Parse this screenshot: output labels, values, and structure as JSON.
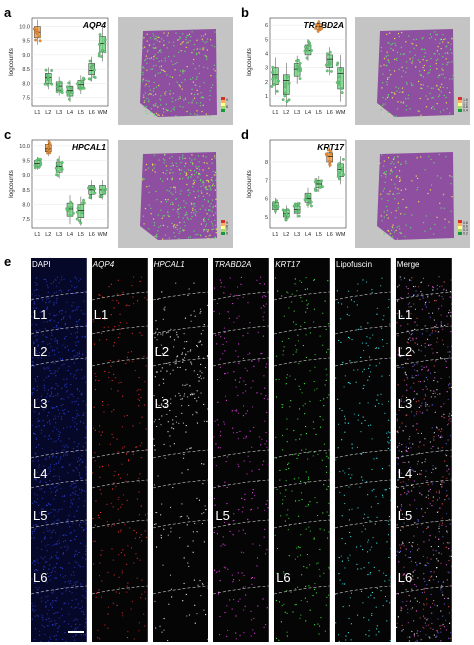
{
  "panels": {
    "a": {
      "letter": "a",
      "gene": "AQP4",
      "ylabel": "logcounts",
      "yticks": [
        "7.5",
        "8.0",
        "8.5",
        "9.0",
        "9.5",
        "10.0"
      ],
      "ymin": 7.2,
      "ymax": 10.3,
      "categories": [
        "L1",
        "L2",
        "L3",
        "L4",
        "L5",
        "L6",
        "WM"
      ],
      "medians": [
        9.8,
        8.2,
        7.9,
        7.75,
        7.95,
        8.45,
        9.4
      ],
      "box_lo": [
        9.6,
        8.0,
        7.75,
        7.55,
        7.8,
        8.3,
        9.1
      ],
      "box_hi": [
        10.0,
        8.35,
        8.05,
        7.9,
        8.1,
        8.7,
        9.65
      ],
      "legend": [
        "9",
        "8"
      ]
    },
    "b": {
      "letter": "b",
      "gene": "TRABD2A",
      "ylabel": "logcounts",
      "yticks": [
        "1",
        "2",
        "3",
        "4",
        "5",
        "6"
      ],
      "ymin": 0.3,
      "ymax": 6.5,
      "categories": [
        "L1",
        "L2",
        "L3",
        "L4",
        "L5",
        "L6",
        "WM"
      ],
      "medians": [
        2.5,
        2.1,
        2.9,
        4.2,
        5.9,
        3.6,
        2.6
      ],
      "box_lo": [
        1.8,
        1.1,
        2.4,
        3.9,
        5.7,
        3.0,
        1.5
      ],
      "box_hi": [
        3.0,
        2.5,
        3.3,
        4.6,
        6.1,
        3.9,
        3.0
      ],
      "legend": [
        "1.6",
        "1.2",
        "0.8",
        "0.4"
      ]
    },
    "c": {
      "letter": "c",
      "gene": "HPCAL1",
      "ylabel": "logcounts",
      "yticks": [
        "7.5",
        "8.0",
        "8.5",
        "9.0",
        "9.5",
        "10.0"
      ],
      "ymin": 7.2,
      "ymax": 10.2,
      "categories": [
        "L1",
        "L2",
        "L3",
        "L4",
        "L5",
        "L6",
        "WM"
      ],
      "medians": [
        9.4,
        9.9,
        9.3,
        7.85,
        7.8,
        8.5,
        8.5
      ],
      "box_lo": [
        9.3,
        9.8,
        9.1,
        7.6,
        7.55,
        8.35,
        8.35
      ],
      "box_hi": [
        9.5,
        10.05,
        9.45,
        8.05,
        8.0,
        8.65,
        8.65
      ],
      "legend": [
        "9",
        "8",
        "7",
        "6"
      ]
    },
    "d": {
      "letter": "d",
      "gene": "KRT17",
      "ylabel": "logcounts",
      "yticks": [
        "5",
        "6",
        "7",
        "8"
      ],
      "ymin": 4.4,
      "ymax": 9.2,
      "categories": [
        "L1",
        "L2",
        "L3",
        "L4",
        "L5",
        "L6",
        "WM"
      ],
      "medians": [
        5.6,
        5.2,
        5.4,
        6.0,
        6.8,
        8.3,
        7.6
      ],
      "box_lo": [
        5.4,
        5.0,
        5.2,
        5.8,
        6.6,
        8.0,
        7.2
      ],
      "box_hi": [
        5.8,
        5.4,
        5.6,
        6.3,
        7.0,
        8.5,
        7.9
      ],
      "legend": [
        "0.8",
        "0.6",
        "0.4",
        "0.2"
      ]
    }
  },
  "panel_e": {
    "letter": "e",
    "channels": [
      {
        "label": "DAPI",
        "italic": false,
        "color": "#2a3fd0"
      },
      {
        "label": "AQP4",
        "italic": true,
        "color": "#ff3030"
      },
      {
        "label": "HPCAL1",
        "italic": true,
        "color": "#ffffff"
      },
      {
        "label": "TRABD2A",
        "italic": true,
        "color": "#ff40ff"
      },
      {
        "label": "KRT17",
        "italic": true,
        "color": "#40ff40"
      },
      {
        "label": "Lipofuscin",
        "italic": false,
        "color": "#40ffff"
      },
      {
        "label": "Merge",
        "italic": false,
        "color": "#ffffff"
      }
    ],
    "layer_labels": [
      "L1",
      "L2",
      "L3",
      "L4",
      "L5",
      "L6"
    ]
  },
  "colors": {
    "orange": "#f28c28",
    "green": "#5fcf73",
    "pink": "#e0e0e0"
  }
}
